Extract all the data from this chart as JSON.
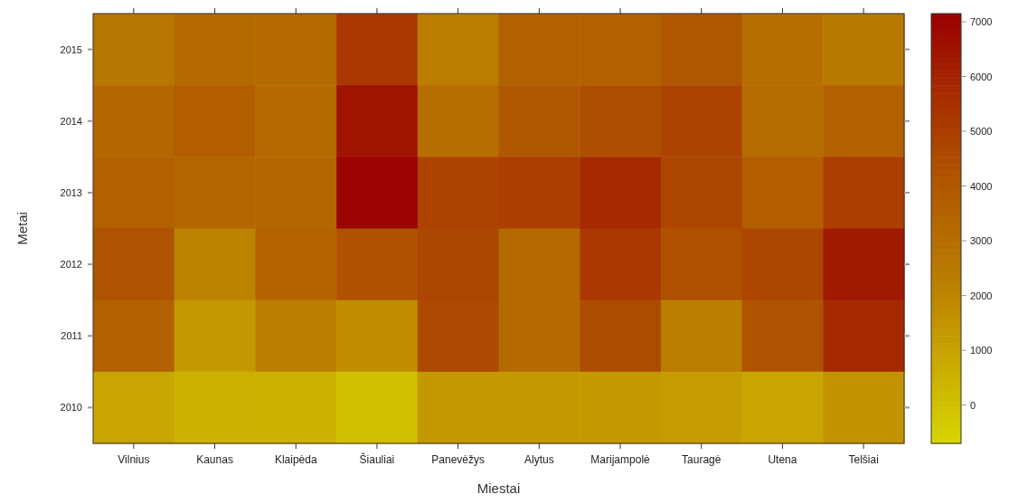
{
  "chart_data": {
    "type": "heatmap",
    "xlabel": "Miestai",
    "ylabel": "Metai",
    "categories": [
      "Vilnius",
      "Kaunas",
      "Klaipėda",
      "Šiauliai",
      "Panevėžys",
      "Alytus",
      "Marijampolė",
      "Tauragė",
      "Utena",
      "Telšiai"
    ],
    "y_categories": [
      "2015",
      "2014",
      "2013",
      "2012",
      "2011",
      "2010"
    ],
    "cells": [
      [
        2600,
        3200,
        3200,
        5200,
        2300,
        3600,
        3600,
        4000,
        3000,
        2500
      ],
      [
        3300,
        3800,
        3200,
        6500,
        3000,
        4000,
        4400,
        4800,
        3100,
        3600
      ],
      [
        3600,
        3300,
        3300,
        7000,
        4800,
        5000,
        5700,
        4700,
        3800,
        5000
      ],
      [
        4200,
        2100,
        3500,
        4300,
        4700,
        3200,
        5200,
        4300,
        4700,
        6300
      ],
      [
        3600,
        1300,
        2300,
        1700,
        4600,
        3200,
        4500,
        2300,
        4200,
        5700
      ],
      [
        900,
        500,
        500,
        0,
        1300,
        1300,
        1300,
        1200,
        900,
        1500
      ]
    ],
    "clim": [
      -700,
      7150
    ],
    "cticks": [
      0,
      1000,
      2000,
      3000,
      4000,
      5000,
      6000,
      7000
    ]
  }
}
